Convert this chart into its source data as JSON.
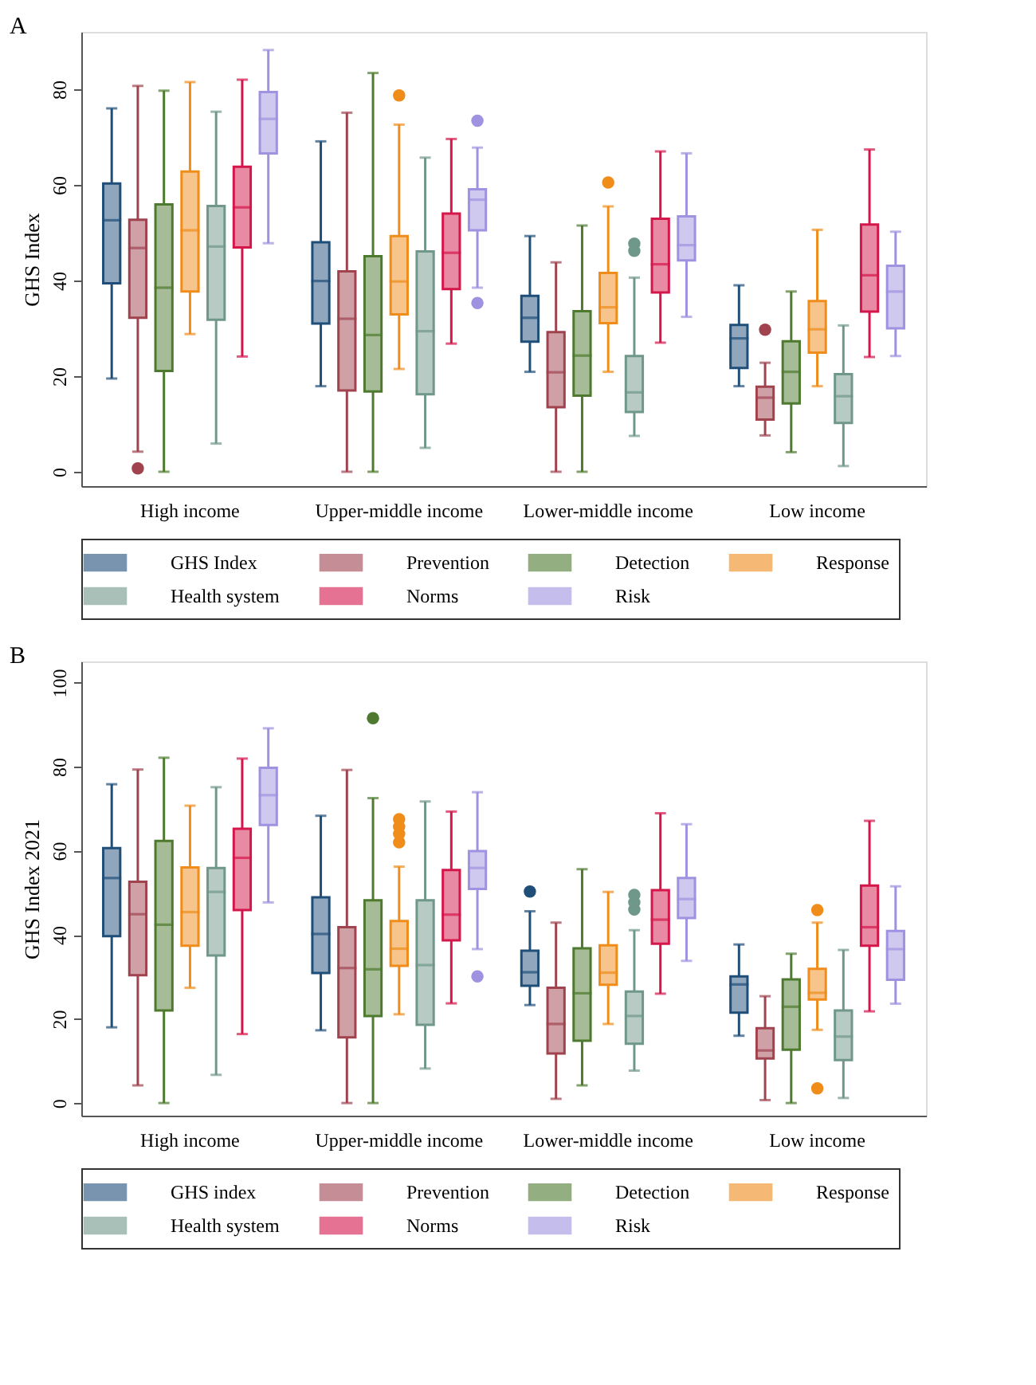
{
  "chart_data": [
    {
      "type": "box",
      "title": "A",
      "ylabel": "GHS Index",
      "categories": [
        "High income",
        "Upper-middle income",
        "Lower-middle income",
        "Low income"
      ],
      "ylim": [
        -3,
        92
      ],
      "yticks": [
        0,
        20,
        40,
        60,
        80
      ],
      "grid": false,
      "legend": "bottom",
      "series": [
        {
          "name": "GHS Index",
          "color": "#1f4e79",
          "boxes": [
            {
              "low": 19.5,
              "q1": 39.4,
              "median": 52.6,
              "q3": 60.3,
              "high": 76
            },
            {
              "low": 17.9,
              "q1": 31,
              "median": 39.9,
              "q3": 48,
              "high": 69.1
            },
            {
              "low": 20.9,
              "q1": 27.2,
              "median": 32.2,
              "q3": 36.8,
              "high": 49.3
            },
            {
              "low": 17.9,
              "q1": 21.7,
              "median": 27.9,
              "q3": 30.7,
              "high": 39
            }
          ]
        },
        {
          "name": "Prevention",
          "color": "#a0434f",
          "boxes": [
            {
              "low": 4.2,
              "q1": 32.2,
              "median": 46.8,
              "q3": 52.7,
              "high": 80.7,
              "outliers": [
                0.7
              ]
            },
            {
              "low": 0,
              "q1": 17,
              "median": 32,
              "q3": 41.9,
              "high": 75.1
            },
            {
              "low": 0,
              "q1": 13.5,
              "median": 20.8,
              "q3": 29.2,
              "high": 43.8
            },
            {
              "low": 7.6,
              "q1": 10.9,
              "median": 15.5,
              "q3": 17.8,
              "high": 22.8,
              "outliers": [
                29.7
              ]
            }
          ]
        },
        {
          "name": "Detection",
          "color": "#4d7a2e",
          "boxes": [
            {
              "low": 0,
              "q1": 21.1,
              "median": 38.5,
              "q3": 55.9,
              "high": 79.7
            },
            {
              "low": 0,
              "q1": 16.8,
              "median": 28.6,
              "q3": 45.1,
              "high": 83.4
            },
            {
              "low": 0,
              "q1": 15.9,
              "median": 24.3,
              "q3": 33.6,
              "high": 51.5
            },
            {
              "low": 4.1,
              "q1": 14.3,
              "median": 20.9,
              "q3": 27.3,
              "high": 37.7
            }
          ]
        },
        {
          "name": "Response",
          "color": "#f08c1a",
          "boxes": [
            {
              "low": 28.8,
              "q1": 37.7,
              "median": 50.5,
              "q3": 62.8,
              "high": 81.5
            },
            {
              "low": 21.5,
              "q1": 32.9,
              "median": 39.8,
              "q3": 49.3,
              "high": 72.6,
              "outliers": [
                78.7
              ]
            },
            {
              "low": 20.9,
              "q1": 31.1,
              "median": 34.4,
              "q3": 41.6,
              "high": 55.5,
              "outliers": [
                60.5
              ]
            },
            {
              "low": 17.9,
              "q1": 24.9,
              "median": 29.8,
              "q3": 35.7,
              "high": 50.6
            }
          ]
        },
        {
          "name": "Health system",
          "color": "#6f978a",
          "boxes": [
            {
              "low": 5.9,
              "q1": 31.8,
              "median": 47.1,
              "q3": 55.6,
              "high": 75.3
            },
            {
              "low": 5,
              "q1": 16.2,
              "median": 29.4,
              "q3": 46.1,
              "high": 65.7
            },
            {
              "low": 7.5,
              "q1": 12.5,
              "median": 16.6,
              "q3": 24.2,
              "high": 40.6,
              "outliers": [
                46.2,
                47.7
              ]
            },
            {
              "low": 1.2,
              "q1": 10.2,
              "median": 15.8,
              "q3": 20.4,
              "high": 30.6
            }
          ]
        },
        {
          "name": "Norms",
          "color": "#d4164a",
          "boxes": [
            {
              "low": 24.1,
              "q1": 46.9,
              "median": 55.3,
              "q3": 63.8,
              "high": 82
            },
            {
              "low": 26.8,
              "q1": 38.2,
              "median": 45.8,
              "q3": 54,
              "high": 69.6
            },
            {
              "low": 27,
              "q1": 37.5,
              "median": 43.4,
              "q3": 52.9,
              "high": 67
            },
            {
              "low": 24,
              "q1": 33.5,
              "median": 41.1,
              "q3": 51.7,
              "high": 67.4
            }
          ]
        },
        {
          "name": "Risk",
          "color": "#9f92e0",
          "boxes": [
            {
              "low": 47.8,
              "q1": 66.6,
              "median": 73.8,
              "q3": 79.4,
              "high": 88.2
            },
            {
              "low": 38.5,
              "q1": 50.5,
              "median": 56.9,
              "q3": 59.1,
              "high": 67.8,
              "outliers": [
                35.3,
                73.4
              ]
            },
            {
              "low": 32.4,
              "q1": 44.2,
              "median": 47.4,
              "q3": 53.4,
              "high": 66.6
            },
            {
              "low": 24.2,
              "q1": 30,
              "median": 37.7,
              "q3": 43.1,
              "high": 50.2
            }
          ]
        }
      ]
    },
    {
      "type": "box",
      "title": "B",
      "ylabel": "GHS Index 2021",
      "categories": [
        "High income",
        "Upper-middle income",
        "Lower-middle income",
        "Low income"
      ],
      "ylim": [
        -3,
        105
      ],
      "yticks": [
        0,
        20,
        40,
        60,
        80,
        100
      ],
      "grid": false,
      "legend": "bottom",
      "series": [
        {
          "name": "GHS index",
          "color": "#1f4e79",
          "boxes": [
            {
              "low": 18,
              "q1": 39.7,
              "median": 53.5,
              "q3": 60.6,
              "high": 75.8
            },
            {
              "low": 17.3,
              "q1": 30.9,
              "median": 40.2,
              "q3": 48.9,
              "high": 68.3
            },
            {
              "low": 23.3,
              "q1": 27.9,
              "median": 31.1,
              "q3": 36.2,
              "high": 45.6,
              "outliers": [
                50.3
              ]
            },
            {
              "low": 16,
              "q1": 21.5,
              "median": 28.2,
              "q3": 30.1,
              "high": 37.7
            }
          ]
        },
        {
          "name": "Prevention",
          "color": "#a0434f",
          "boxes": [
            {
              "low": 4.2,
              "q1": 30.4,
              "median": 44.9,
              "q3": 52.6,
              "high": 79.3
            },
            {
              "low": 0,
              "q1": 15.6,
              "median": 32.1,
              "q3": 41.8,
              "high": 79.2
            },
            {
              "low": 1,
              "q1": 11.8,
              "median": 18.8,
              "q3": 27.4,
              "high": 42.9
            },
            {
              "low": 0.7,
              "q1": 10.6,
              "median": 12.5,
              "q3": 17.8,
              "high": 25.4
            }
          ]
        },
        {
          "name": "Detection",
          "color": "#4d7a2e",
          "boxes": [
            {
              "low": 0,
              "q1": 22,
              "median": 42.4,
              "q3": 62.3,
              "high": 82.1
            },
            {
              "low": 0,
              "q1": 20.7,
              "median": 31.8,
              "q3": 48.2,
              "high": 72.5,
              "outliers": [
                91.5
              ]
            },
            {
              "low": 4.2,
              "q1": 14.8,
              "median": 26.1,
              "q3": 36.8,
              "high": 55.6
            },
            {
              "low": 0,
              "q1": 12.7,
              "median": 22.9,
              "q3": 29.4,
              "high": 35.5
            }
          ]
        },
        {
          "name": "Response",
          "color": "#f08c1a",
          "boxes": [
            {
              "low": 27.4,
              "q1": 37.4,
              "median": 45.4,
              "q3": 56,
              "high": 70.7
            },
            {
              "low": 21.1,
              "q1": 32.6,
              "median": 36.7,
              "q3": 43.3,
              "high": 56.2,
              "outliers": [
                62,
                64,
                65.7,
                67.5
              ]
            },
            {
              "low": 18.8,
              "q1": 28.1,
              "median": 31,
              "q3": 37.5,
              "high": 50.2
            },
            {
              "low": 17.4,
              "q1": 24.6,
              "median": 26.2,
              "q3": 31.9,
              "high": 42.9,
              "outliers": [
                3.5,
                45.9
              ]
            }
          ]
        },
        {
          "name": "Health system",
          "color": "#6f978a",
          "boxes": [
            {
              "low": 6.7,
              "q1": 35.1,
              "median": 50.2,
              "q3": 55.9,
              "high": 75.1
            },
            {
              "low": 8.2,
              "q1": 18.6,
              "median": 32.8,
              "q3": 48.2,
              "high": 71.7
            },
            {
              "low": 7.7,
              "q1": 14.1,
              "median": 20.7,
              "q3": 26.5,
              "high": 41.1,
              "outliers": [
                46,
                47.7,
                49.5
              ]
            },
            {
              "low": 1.2,
              "q1": 10.2,
              "median": 15.8,
              "q3": 22,
              "high": 36.4
            }
          ]
        },
        {
          "name": "Norms",
          "color": "#d4164a",
          "boxes": [
            {
              "low": 16.4,
              "q1": 45.9,
              "median": 58.3,
              "q3": 65.2,
              "high": 81.9
            },
            {
              "low": 23.7,
              "q1": 38.7,
              "median": 44.8,
              "q3": 55.4,
              "high": 69.3
            },
            {
              "low": 26,
              "q1": 37.9,
              "median": 43.6,
              "q3": 50.6,
              "high": 68.9
            },
            {
              "low": 21.8,
              "q1": 37.4,
              "median": 41.8,
              "q3": 51.7,
              "high": 67.1
            }
          ]
        },
        {
          "name": "Risk",
          "color": "#9f92e0",
          "boxes": [
            {
              "low": 47.7,
              "q1": 66.1,
              "median": 73.2,
              "q3": 79.7,
              "high": 89.1
            },
            {
              "low": 36.6,
              "q1": 50.9,
              "median": 55.9,
              "q3": 59.9,
              "high": 73.9,
              "outliers": [
                30.1
              ]
            },
            {
              "low": 33.8,
              "q1": 44,
              "median": 48.5,
              "q3": 53.5,
              "high": 66.3
            },
            {
              "low": 23.6,
              "q1": 29.3,
              "median": 36.6,
              "q3": 40.9,
              "high": 51.5
            }
          ]
        }
      ]
    }
  ]
}
